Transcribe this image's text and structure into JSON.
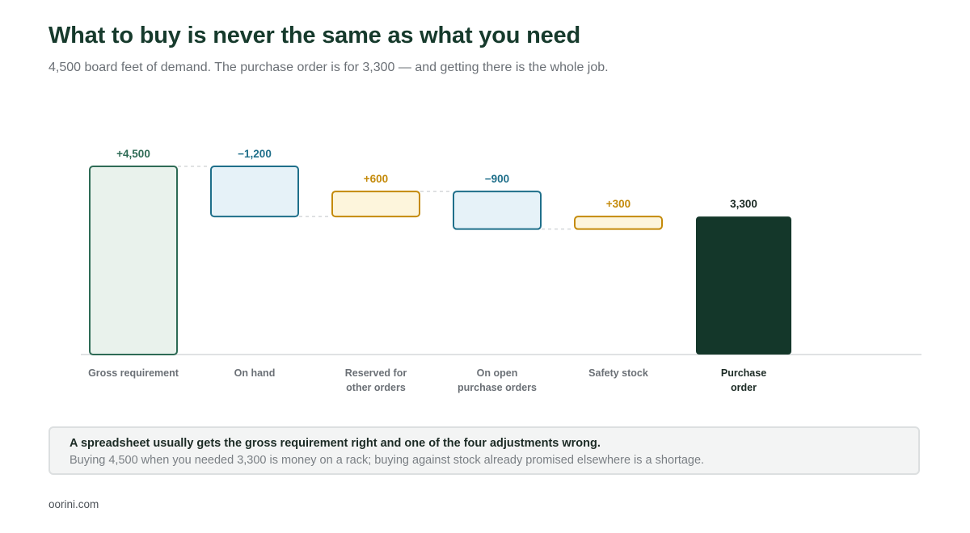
{
  "header": {
    "title": "What to buy is never the same as what you need",
    "subtitle": "4,500 board feet of demand. The purchase order is for 3,300 — and getting there is the whole job."
  },
  "chart_data": {
    "type": "waterfall",
    "title": "What to buy is never the same as what you need",
    "unit": "board feet",
    "ylim": [
      0,
      4500
    ],
    "grid": false,
    "legend": "none",
    "steps": [
      {
        "label": [
          "Gross requirement"
        ],
        "value": 4500,
        "value_label": "+4,500",
        "kind": "start",
        "color": "#2e6b55",
        "fill": "#e9f2ec"
      },
      {
        "label": [
          "On hand"
        ],
        "value": -1200,
        "value_label": "−1,200",
        "kind": "decrease",
        "color": "#1f6f8a",
        "fill": "#e6f2f8"
      },
      {
        "label": [
          "Reserved for",
          "other orders"
        ],
        "value": 600,
        "value_label": "+600",
        "kind": "increase",
        "color": "#c48a0a",
        "fill": "#fdf5dc"
      },
      {
        "label": [
          "On open",
          "purchase orders"
        ],
        "value": -900,
        "value_label": "−900",
        "kind": "decrease",
        "color": "#1f6f8a",
        "fill": "#e6f2f8"
      },
      {
        "label": [
          "Safety stock"
        ],
        "value": 300,
        "value_label": "+300",
        "kind": "increase",
        "color": "#c48a0a",
        "fill": "#fdf5dc"
      },
      {
        "label": [
          "Purchase",
          "order"
        ],
        "value": 3300,
        "value_label": "3,300",
        "kind": "total",
        "color": "#1c2b25",
        "fill": "#14372a"
      }
    ],
    "colors": {
      "axis": "#d5d8da",
      "connector": "#d5d8da",
      "category_label": "#6b7076",
      "total_label": "#1c2b25"
    }
  },
  "callout": {
    "title": "A spreadsheet usually gets the gross requirement right and one of the four adjustments wrong.",
    "body": "Buying 4,500 when you needed 3,300 is money on a rack; buying against stock already promised elsewhere is a shortage."
  },
  "footer": {
    "source": "oorini.com"
  }
}
